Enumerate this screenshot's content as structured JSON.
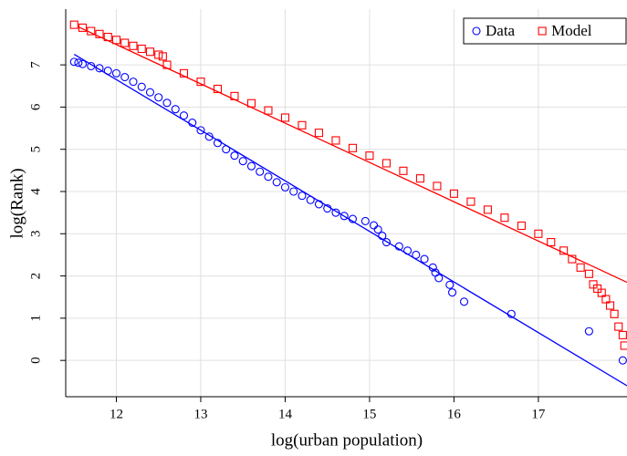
{
  "chart_data": {
    "type": "scatter",
    "x_label": "log(urban population)",
    "y_label": "log(Rank)",
    "xlim": [
      11.4,
      18.05
    ],
    "ylim": [
      -0.86,
      8.32
    ],
    "xticks": [
      12,
      13,
      14,
      15,
      16,
      17
    ],
    "yticks": [
      0,
      1,
      2,
      3,
      4,
      5,
      6,
      7
    ],
    "grid": true,
    "legend": "top-right",
    "series": [
      {
        "name": "Data",
        "color": "#0000ff",
        "marker": "circle",
        "x": [
          11.5,
          11.55,
          11.6,
          11.7,
          11.8,
          11.9,
          12.0,
          12.1,
          12.2,
          12.3,
          12.4,
          12.5,
          12.6,
          12.7,
          12.8,
          12.9,
          13.0,
          13.1,
          13.2,
          13.3,
          13.4,
          13.5,
          13.6,
          13.7,
          13.8,
          13.9,
          14.0,
          14.1,
          14.2,
          14.3,
          14.4,
          14.5,
          14.6,
          14.7,
          14.8,
          14.95,
          15.05,
          15.1,
          15.15,
          15.2,
          15.35,
          15.45,
          15.55,
          15.65,
          15.75,
          15.78,
          15.82,
          15.95,
          15.98,
          16.12,
          16.68,
          17.6,
          18.0
        ],
        "values": [
          7.07,
          7.05,
          7.02,
          6.97,
          6.92,
          6.86,
          6.8,
          6.71,
          6.6,
          6.48,
          6.35,
          6.23,
          6.1,
          5.95,
          5.8,
          5.63,
          5.45,
          5.3,
          5.15,
          5.0,
          4.85,
          4.72,
          4.6,
          4.47,
          4.35,
          4.22,
          4.1,
          4.0,
          3.9,
          3.8,
          3.7,
          3.6,
          3.5,
          3.42,
          3.35,
          3.3,
          3.2,
          3.1,
          2.95,
          2.8,
          2.7,
          2.6,
          2.5,
          2.4,
          2.2,
          2.08,
          1.95,
          1.79,
          1.61,
          1.39,
          1.1,
          0.69,
          0
        ]
      },
      {
        "name": "Model",
        "color": "#ff0000",
        "marker": "square",
        "x": [
          11.5,
          11.6,
          11.7,
          11.8,
          11.9,
          12.0,
          12.1,
          12.2,
          12.3,
          12.4,
          12.5,
          12.55,
          12.6,
          12.8,
          13.0,
          13.2,
          13.4,
          13.6,
          13.8,
          14.0,
          14.2,
          14.4,
          14.6,
          14.8,
          15.0,
          15.2,
          15.4,
          15.6,
          15.8,
          16.0,
          16.2,
          16.4,
          16.6,
          16.8,
          17.0,
          17.15,
          17.3,
          17.4,
          17.5,
          17.6,
          17.65,
          17.7,
          17.75,
          17.8,
          17.85,
          17.9,
          17.95,
          18.0,
          18.02
        ],
        "values": [
          7.95,
          7.88,
          7.8,
          7.73,
          7.66,
          7.59,
          7.52,
          7.45,
          7.38,
          7.31,
          7.24,
          7.2,
          7.0,
          6.8,
          6.6,
          6.43,
          6.26,
          6.09,
          5.92,
          5.75,
          5.57,
          5.39,
          5.21,
          5.03,
          4.85,
          4.67,
          4.49,
          4.31,
          4.13,
          3.95,
          3.76,
          3.57,
          3.38,
          3.19,
          3.0,
          2.8,
          2.6,
          2.4,
          2.2,
          2.05,
          1.8,
          1.7,
          1.6,
          1.45,
          1.3,
          1.1,
          0.8,
          0.6,
          0.35
        ]
      }
    ],
    "fit_lines": [
      {
        "color": "#0000ff",
        "x": [
          11.5,
          18.05
        ],
        "values": [
          7.25,
          -0.6
        ]
      },
      {
        "color": "#ff0000",
        "x": [
          11.55,
          18.05
        ],
        "values": [
          7.9,
          1.85
        ]
      }
    ]
  }
}
